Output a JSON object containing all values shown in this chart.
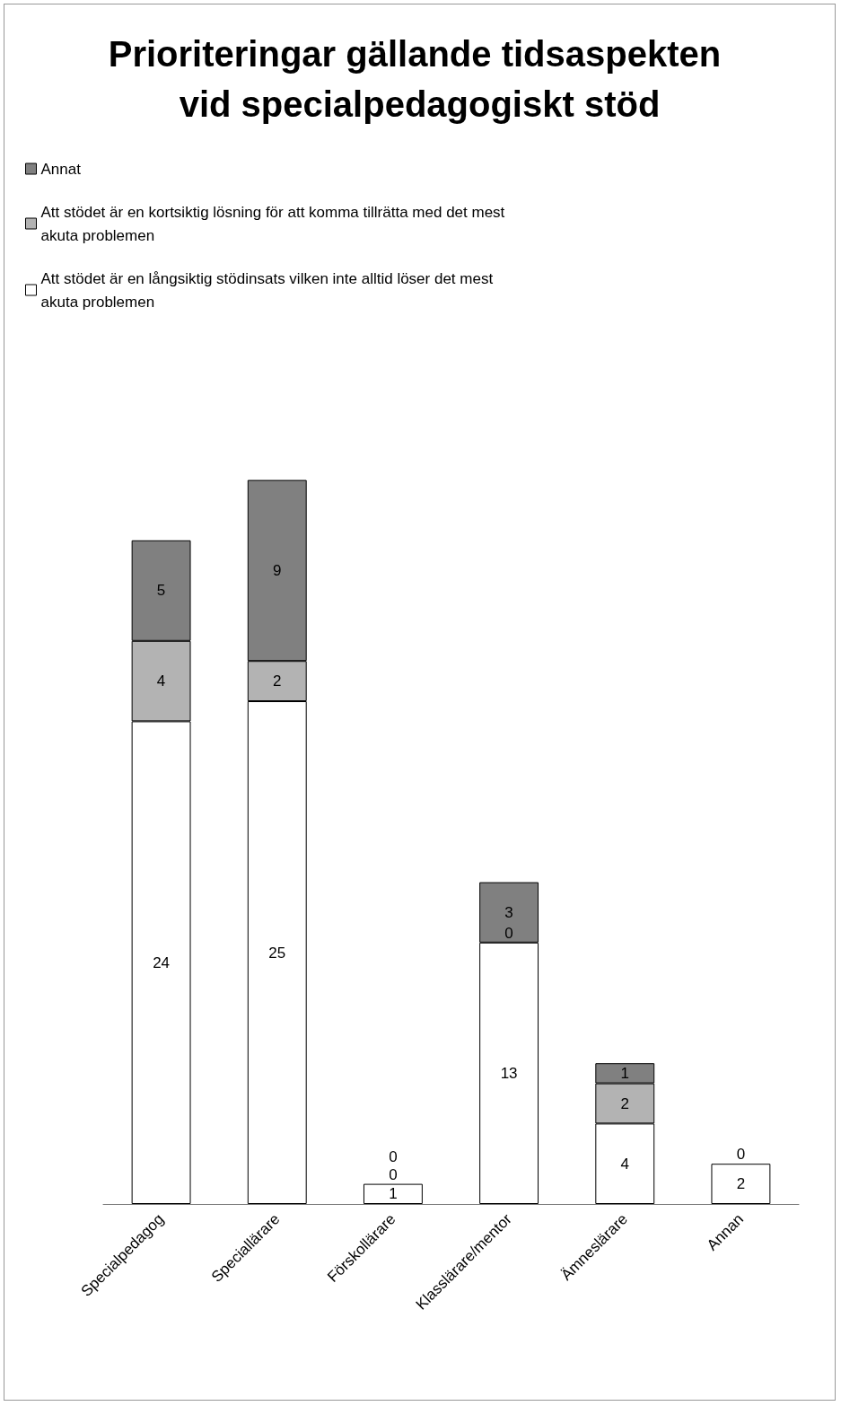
{
  "chart_data": {
    "type": "bar",
    "title": "Prioriteringar gällande tidsaspekten vid specialpedagogiskt stöd",
    "categories": [
      "Specialpedagog",
      "Speciallärare",
      "Förskollärare",
      "Klasslärare/mentor",
      "Ämneslärare",
      "Annan"
    ],
    "stacked": true,
    "legend": "top",
    "series": [
      {
        "name": "Att stödet är en långsiktig stödinsats vilken inte alltid löser det mest akuta problemen",
        "color": "#ffffff",
        "values": [
          24,
          25,
          1,
          13,
          4,
          2
        ],
        "value_labels": [
          "24",
          "25",
          "1",
          "13",
          "4",
          "2"
        ]
      },
      {
        "name": "Att stödet är en kortsiktig lösning för att komma tillrätta med det mest akuta problemen",
        "color": "#b3b3b3",
        "values": [
          4,
          2,
          0,
          0,
          2,
          0
        ],
        "value_labels": [
          "4",
          "2",
          "0",
          "0",
          "2",
          "0"
        ]
      },
      {
        "name": "Annat",
        "color": "#808080",
        "values": [
          5,
          9,
          0,
          3,
          1,
          0
        ],
        "value_labels": [
          "5",
          "9",
          "0",
          "3",
          "1",
          null
        ]
      }
    ]
  }
}
